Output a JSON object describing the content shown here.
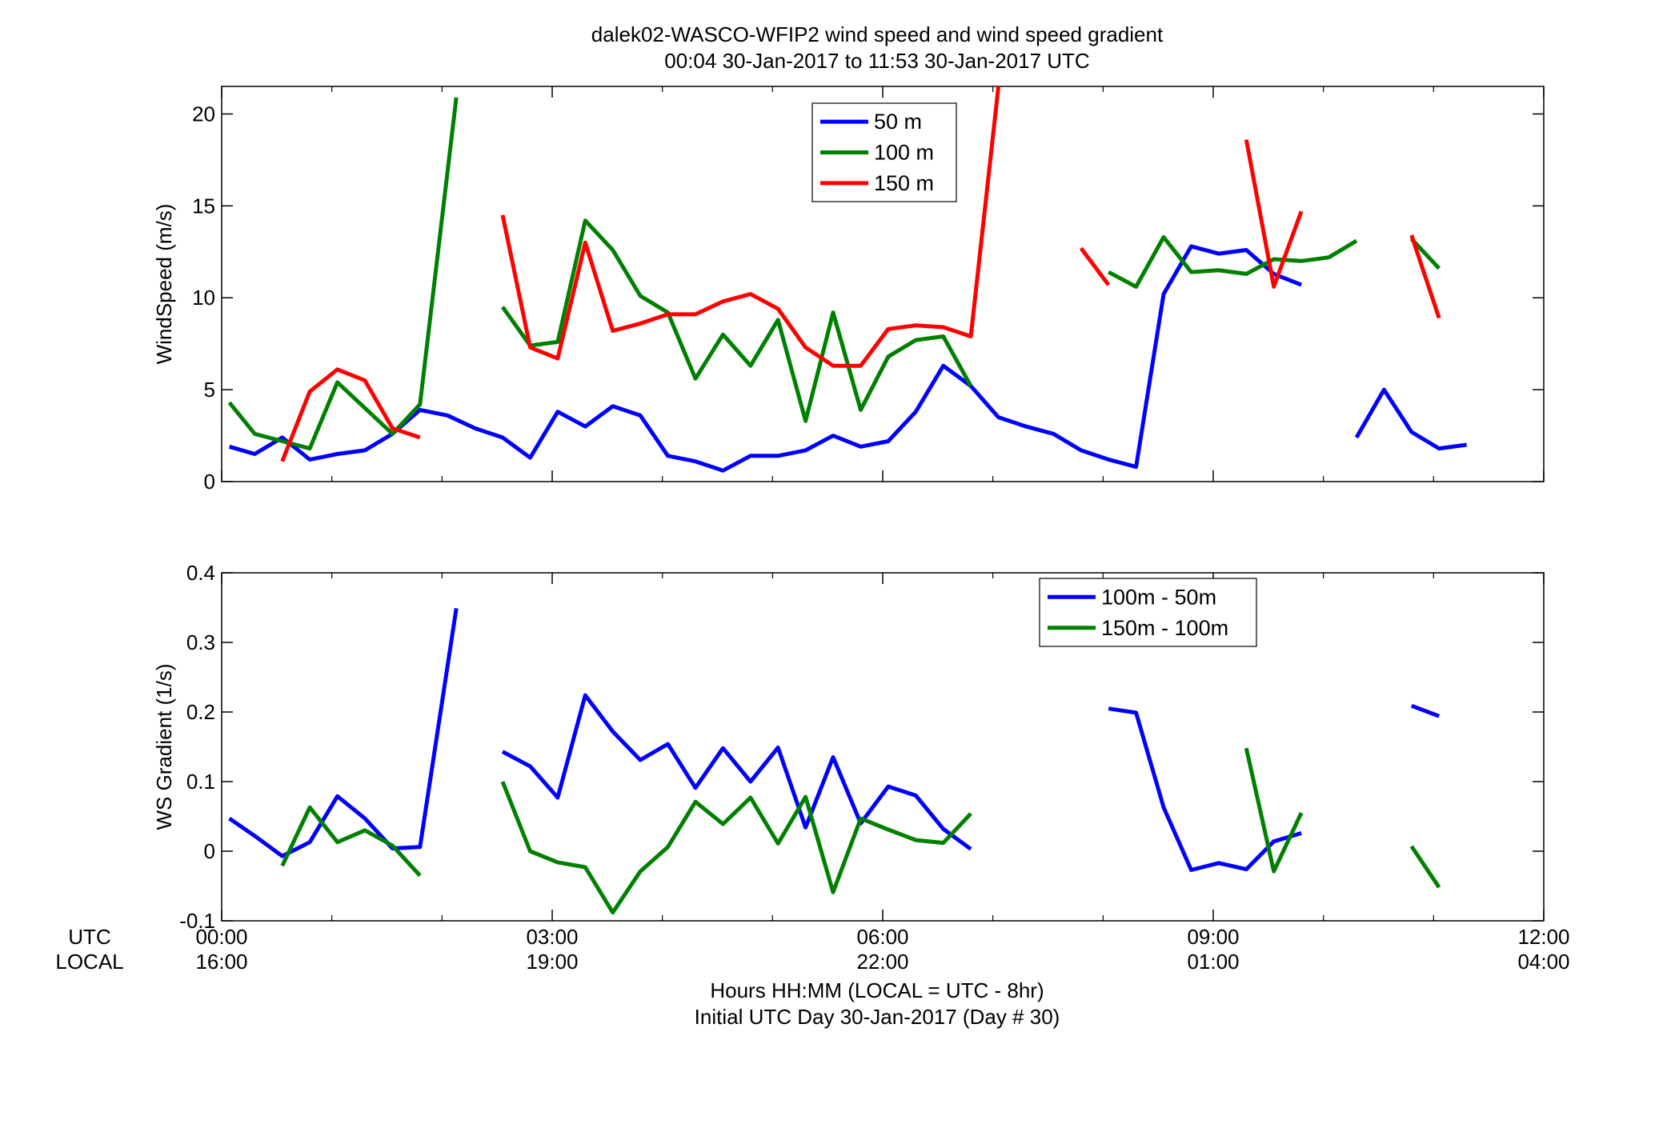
{
  "title_line1": "dalek02-WASCO-WFIP2  wind speed and wind speed gradient",
  "title_line2": "00:04 30-Jan-2017 to 11:53 30-Jan-2017  UTC",
  "xlabel_line1": "Hours HH:MM  (LOCAL = UTC - 8hr)",
  "xlabel_line2": "Initial UTC Day 30-Jan-2017 (Day # 30)",
  "row_label_utc": "UTC",
  "row_label_local": "LOCAL",
  "xticks": [
    {
      "hour": 0,
      "utc": "00:00",
      "local": "16:00"
    },
    {
      "hour": 3,
      "utc": "03:00",
      "local": "19:00"
    },
    {
      "hour": 6,
      "utc": "06:00",
      "local": "22:00"
    },
    {
      "hour": 9,
      "utc": "09:00",
      "local": "01:00"
    },
    {
      "hour": 12,
      "utc": "12:00",
      "local": "04:00"
    }
  ],
  "chart_data": [
    {
      "type": "line",
      "ylabel": "WindSpeed (m/s)",
      "xlim": [
        0,
        12
      ],
      "ylim": [
        0,
        21.5
      ],
      "yticks": [
        0,
        5,
        10,
        15,
        20
      ],
      "legend_position": "top-center",
      "series": [
        {
          "name": "50 m",
          "color": "#0000ff",
          "segments": [
            [
              [
                0.07,
                1.9
              ],
              [
                0.3,
                1.5
              ],
              [
                0.55,
                2.4
              ],
              [
                0.8,
                1.2
              ],
              [
                1.05,
                1.5
              ],
              [
                1.3,
                1.7
              ],
              [
                1.55,
                2.6
              ],
              [
                1.8,
                3.9
              ],
              [
                2.05,
                3.6
              ],
              [
                2.3,
                2.9
              ],
              [
                2.55,
                2.4
              ],
              [
                2.8,
                1.3
              ],
              [
                3.05,
                3.8
              ],
              [
                3.3,
                3.0
              ],
              [
                3.55,
                4.1
              ],
              [
                3.8,
                3.6
              ],
              [
                4.05,
                1.4
              ],
              [
                4.3,
                1.1
              ],
              [
                4.55,
                0.6
              ],
              [
                4.8,
                1.4
              ],
              [
                5.05,
                1.4
              ],
              [
                5.3,
                1.7
              ],
              [
                5.55,
                2.5
              ],
              [
                5.8,
                1.9
              ],
              [
                6.05,
                2.2
              ],
              [
                6.3,
                3.8
              ],
              [
                6.55,
                6.3
              ],
              [
                6.8,
                5.2
              ],
              [
                7.05,
                3.5
              ],
              [
                7.3,
                3.0
              ],
              [
                7.55,
                2.6
              ],
              [
                7.8,
                1.7
              ],
              [
                8.05,
                1.2
              ],
              [
                8.3,
                0.8
              ],
              [
                8.55,
                10.2
              ],
              [
                8.8,
                12.8
              ],
              [
                9.05,
                12.4
              ],
              [
                9.3,
                12.6
              ],
              [
                9.55,
                11.3
              ],
              [
                9.8,
                10.7
              ]
            ],
            [
              [
                10.3,
                2.4
              ],
              [
                10.55,
                5.0
              ],
              [
                10.8,
                2.7
              ],
              [
                11.05,
                1.8
              ],
              [
                11.3,
                2.0
              ]
            ]
          ]
        },
        {
          "name": "100 m",
          "color": "#008000",
          "segments": [
            [
              [
                0.07,
                4.3
              ],
              [
                0.3,
                2.6
              ],
              [
                0.55,
                2.2
              ],
              [
                0.8,
                1.8
              ],
              [
                1.05,
                5.4
              ],
              [
                1.3,
                4.0
              ],
              [
                1.55,
                2.6
              ],
              [
                1.8,
                4.2
              ],
              [
                2.13,
                20.9
              ]
            ],
            [
              [
                2.55,
                9.5
              ],
              [
                2.8,
                7.4
              ],
              [
                3.05,
                7.6
              ],
              [
                3.3,
                14.2
              ],
              [
                3.55,
                12.6
              ],
              [
                3.8,
                10.1
              ],
              [
                4.05,
                9.2
              ],
              [
                4.3,
                5.6
              ],
              [
                4.55,
                8.0
              ],
              [
                4.8,
                6.3
              ],
              [
                5.05,
                8.8
              ],
              [
                5.3,
                3.3
              ],
              [
                5.55,
                9.2
              ],
              [
                5.8,
                3.9
              ],
              [
                6.05,
                6.8
              ],
              [
                6.3,
                7.7
              ],
              [
                6.55,
                7.9
              ],
              [
                6.8,
                5.2
              ]
            ],
            [
              [
                8.05,
                11.4
              ],
              [
                8.3,
                10.6
              ],
              [
                8.55,
                13.3
              ],
              [
                8.8,
                11.4
              ],
              [
                9.05,
                11.5
              ],
              [
                9.3,
                11.3
              ],
              [
                9.55,
                12.1
              ],
              [
                9.8,
                12.0
              ],
              [
                10.05,
                12.2
              ],
              [
                10.3,
                13.1
              ]
            ],
            [
              [
                10.8,
                13.2
              ],
              [
                11.05,
                11.6
              ]
            ]
          ]
        },
        {
          "name": "150 m",
          "color": "#ff0000",
          "segments": [
            [
              [
                0.55,
                1.1
              ],
              [
                0.8,
                4.9
              ],
              [
                1.05,
                6.1
              ],
              [
                1.3,
                5.5
              ],
              [
                1.55,
                2.9
              ],
              [
                1.8,
                2.4
              ]
            ],
            [
              [
                2.55,
                14.5
              ],
              [
                2.8,
                7.3
              ],
              [
                3.05,
                6.7
              ],
              [
                3.3,
                13.0
              ],
              [
                3.55,
                8.2
              ],
              [
                3.8,
                8.6
              ],
              [
                4.05,
                9.1
              ],
              [
                4.3,
                9.1
              ],
              [
                4.55,
                9.8
              ],
              [
                4.8,
                10.2
              ],
              [
                5.05,
                9.4
              ],
              [
                5.3,
                7.3
              ],
              [
                5.55,
                6.3
              ],
              [
                5.8,
                6.3
              ],
              [
                6.05,
                8.3
              ],
              [
                6.3,
                8.5
              ],
              [
                6.55,
                8.4
              ],
              [
                6.8,
                7.9
              ],
              [
                7.05,
                21.5
              ]
            ],
            [
              [
                7.8,
                12.7
              ],
              [
                8.05,
                10.7
              ]
            ],
            [
              [
                9.3,
                18.6
              ],
              [
                9.55,
                10.6
              ],
              [
                9.8,
                14.7
              ]
            ],
            [
              [
                10.8,
                13.4
              ],
              [
                11.05,
                8.9
              ]
            ]
          ]
        }
      ]
    },
    {
      "type": "line",
      "ylabel": "WS Gradient (1/s)",
      "xlim": [
        0,
        12
      ],
      "ylim": [
        -0.1,
        0.4
      ],
      "yticks": [
        -0.1,
        0,
        0.1,
        0.2,
        0.3,
        0.4
      ],
      "legend_position": "top-right",
      "series": [
        {
          "name": "100m - 50m",
          "color": "#0000ff",
          "segments": [
            [
              [
                0.07,
                0.047
              ],
              [
                0.3,
                0.022
              ],
              [
                0.55,
                -0.007
              ],
              [
                0.8,
                0.013
              ],
              [
                1.05,
                0.079
              ],
              [
                1.3,
                0.047
              ],
              [
                1.55,
                0.004
              ],
              [
                1.8,
                0.006
              ],
              [
                2.13,
                0.349
              ]
            ],
            [
              [
                2.55,
                0.143
              ],
              [
                2.8,
                0.122
              ],
              [
                3.05,
                0.077
              ],
              [
                3.3,
                0.224
              ],
              [
                3.55,
                0.172
              ],
              [
                3.8,
                0.131
              ],
              [
                4.05,
                0.154
              ],
              [
                4.3,
                0.091
              ],
              [
                4.55,
                0.148
              ],
              [
                4.8,
                0.1
              ],
              [
                5.05,
                0.149
              ],
              [
                5.3,
                0.034
              ],
              [
                5.55,
                0.135
              ],
              [
                5.8,
                0.04
              ],
              [
                6.05,
                0.093
              ],
              [
                6.3,
                0.08
              ],
              [
                6.55,
                0.032
              ],
              [
                6.8,
                0.003
              ]
            ],
            [
              [
                8.05,
                0.205
              ],
              [
                8.3,
                0.199
              ],
              [
                8.55,
                0.063
              ],
              [
                8.8,
                -0.027
              ],
              [
                9.05,
                -0.017
              ],
              [
                9.3,
                -0.026
              ],
              [
                9.55,
                0.014
              ],
              [
                9.8,
                0.026
              ]
            ],
            [
              [
                10.8,
                0.209
              ],
              [
                11.05,
                0.194
              ]
            ]
          ]
        },
        {
          "name": "150m - 100m",
          "color": "#008000",
          "segments": [
            [
              [
                0.55,
                -0.021
              ],
              [
                0.8,
                0.063
              ],
              [
                1.05,
                0.013
              ],
              [
                1.3,
                0.03
              ],
              [
                1.55,
                0.008
              ],
              [
                1.8,
                -0.035
              ]
            ],
            [
              [
                2.55,
                0.1
              ],
              [
                2.8,
                0.0
              ],
              [
                3.05,
                -0.016
              ],
              [
                3.3,
                -0.023
              ],
              [
                3.55,
                -0.088
              ],
              [
                3.8,
                -0.029
              ],
              [
                4.05,
                0.006
              ],
              [
                4.3,
                0.071
              ],
              [
                4.55,
                0.039
              ],
              [
                4.8,
                0.077
              ],
              [
                5.05,
                0.011
              ],
              [
                5.3,
                0.078
              ],
              [
                5.55,
                -0.059
              ],
              [
                5.8,
                0.047
              ],
              [
                6.05,
                0.031
              ],
              [
                6.3,
                0.016
              ],
              [
                6.55,
                0.012
              ],
              [
                6.8,
                0.054
              ]
            ],
            [
              [
                9.3,
                0.148
              ],
              [
                9.55,
                -0.029
              ],
              [
                9.8,
                0.055
              ]
            ],
            [
              [
                10.8,
                0.007
              ],
              [
                11.05,
                -0.052
              ]
            ]
          ]
        }
      ]
    }
  ]
}
